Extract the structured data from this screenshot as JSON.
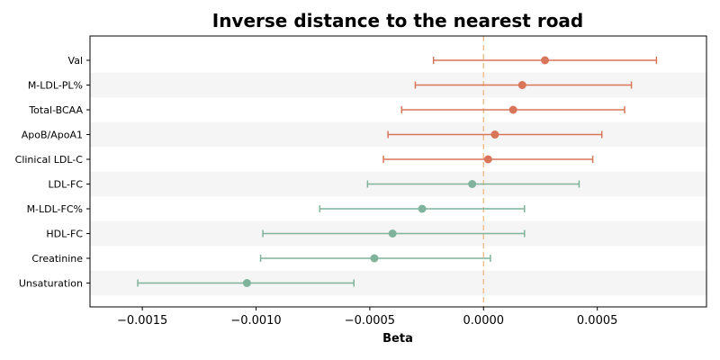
{
  "chart_data": {
    "type": "forest",
    "title": "Inverse distance to the nearest road",
    "xlabel": "Beta",
    "xlim": [
      -0.00173,
      0.00098
    ],
    "xticks": [
      -0.0015,
      -0.001,
      -0.0005,
      0.0,
      0.0005
    ],
    "xtick_labels": [
      "−0.0015",
      "−0.0010",
      "−0.0005",
      "0.0000",
      "0.0005"
    ],
    "reference_line": 0,
    "colors": {
      "positive": "#d9765a",
      "negative": "#7fb39b",
      "reference": "#f2c08a",
      "band": "#f5f5f5"
    },
    "rows": [
      {
        "label": "Val",
        "beta": 0.00027,
        "lo": -0.00022,
        "hi": 0.00076
      },
      {
        "label": "M-LDL-PL%",
        "beta": 0.00017,
        "lo": -0.0003,
        "hi": 0.00065
      },
      {
        "label": "Total-BCAA",
        "beta": 0.00013,
        "lo": -0.00036,
        "hi": 0.00062
      },
      {
        "label": "ApoB/ApoA1",
        "beta": 5e-05,
        "lo": -0.00042,
        "hi": 0.00052
      },
      {
        "label": "Clinical LDL-C",
        "beta": 2e-05,
        "lo": -0.00044,
        "hi": 0.00048
      },
      {
        "label": "LDL-FC",
        "beta": -5e-05,
        "lo": -0.00051,
        "hi": 0.00042
      },
      {
        "label": "M-LDL-FC%",
        "beta": -0.00027,
        "lo": -0.00072,
        "hi": 0.00018
      },
      {
        "label": "HDL-FC",
        "beta": -0.0004,
        "lo": -0.00097,
        "hi": 0.00018
      },
      {
        "label": "Creatinine",
        "beta": -0.00048,
        "lo": -0.00098,
        "hi": 3e-05
      },
      {
        "label": "Unsaturation",
        "beta": -0.00104,
        "lo": -0.00152,
        "hi": -0.00057
      }
    ]
  }
}
